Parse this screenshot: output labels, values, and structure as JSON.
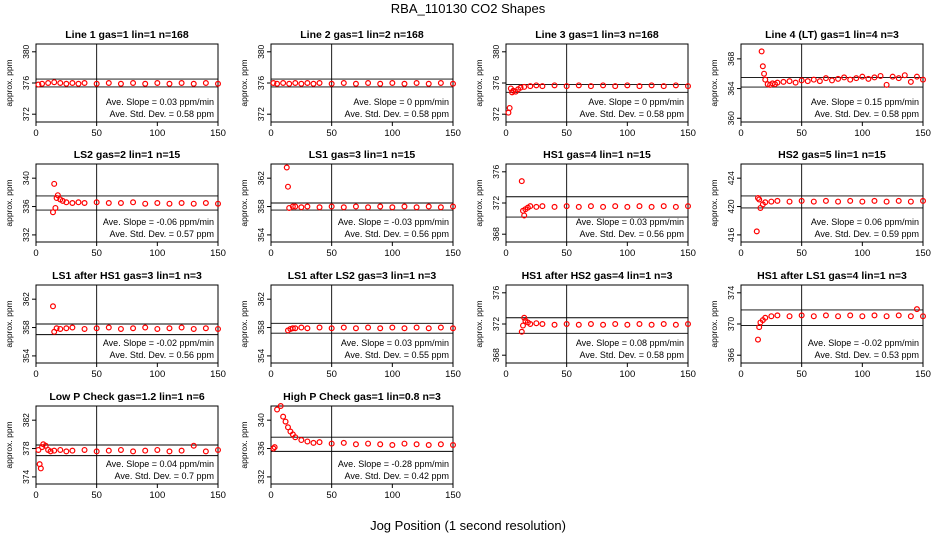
{
  "figure": {
    "title": "RBA_110130  CO2 Shapes",
    "xlabel": "Jog Position (1 second resolution)"
  },
  "colors": {
    "points": "#ff0000",
    "axes": "#000000",
    "background": "#ffffff"
  },
  "chart_data": [
    {
      "type": "scatter",
      "title": "Line 1 gas=1 lin=1 n=168",
      "ylabel": "approx. ppm",
      "xlim": [
        0,
        150
      ],
      "xticks": [
        0,
        50,
        100,
        150
      ],
      "ylim": [
        371,
        381
      ],
      "yticks": [
        372,
        376,
        380
      ],
      "ref_lines": [
        375.5,
        376.5
      ],
      "vline": 50,
      "slope": "Ave. Slope =  0.03  ppm/min",
      "stddev": "Ave. Std. Dev. =  0.58  ppm",
      "x": [
        2,
        5,
        10,
        15,
        20,
        25,
        30,
        35,
        40,
        50,
        60,
        70,
        80,
        90,
        100,
        110,
        120,
        130,
        140,
        150
      ],
      "y": [
        375.8,
        375.9,
        376.0,
        376.1,
        376.0,
        375.9,
        376.0,
        375.9,
        376.0,
        375.9,
        376.0,
        375.9,
        376.0,
        375.9,
        376.0,
        375.9,
        376.0,
        375.9,
        376.0,
        375.9
      ]
    },
    {
      "type": "scatter",
      "title": "Line 2 gas=1 lin=2 n=168",
      "ylabel": "approx. ppm",
      "xlim": [
        0,
        150
      ],
      "xticks": [
        0,
        50,
        100,
        150
      ],
      "ylim": [
        371,
        381
      ],
      "yticks": [
        372,
        376,
        380
      ],
      "ref_lines": [
        375.5,
        376.5
      ],
      "vline": 50,
      "slope": "Ave. Slope =  0  ppm/min",
      "stddev": "Ave. Std. Dev. =  0.58  ppm",
      "x": [
        2,
        5,
        10,
        15,
        20,
        25,
        30,
        35,
        40,
        50,
        60,
        70,
        80,
        90,
        100,
        110,
        120,
        130,
        140,
        150
      ],
      "y": [
        376.0,
        375.9,
        376.0,
        375.9,
        376.0,
        375.9,
        376.0,
        375.9,
        376.0,
        375.9,
        376.0,
        375.9,
        376.0,
        375.9,
        376.0,
        375.9,
        376.0,
        375.9,
        376.0,
        375.9
      ]
    },
    {
      "type": "scatter",
      "title": "Line 3 gas=1 lin=3 n=168",
      "ylabel": "approx. ppm",
      "xlim": [
        0,
        150
      ],
      "xticks": [
        0,
        50,
        100,
        150
      ],
      "ylim": [
        371,
        381
      ],
      "yticks": [
        372,
        376,
        380
      ],
      "ref_lines": [
        374.8,
        375.8
      ],
      "vline": 50,
      "slope": "Ave. Slope =  0  ppm/min",
      "stddev": "Ave. Std. Dev. =  0.58  ppm",
      "x": [
        2,
        3,
        4,
        5,
        6,
        8,
        10,
        12,
        15,
        20,
        25,
        30,
        40,
        50,
        60,
        70,
        80,
        90,
        100,
        110,
        120,
        130,
        140,
        150
      ],
      "y": [
        372.2,
        372.8,
        375.3,
        374.8,
        375.0,
        374.9,
        375.2,
        375.4,
        375.5,
        375.6,
        375.7,
        375.6,
        375.7,
        375.6,
        375.7,
        375.6,
        375.7,
        375.6,
        375.7,
        375.6,
        375.7,
        375.6,
        375.7,
        375.6
      ]
    },
    {
      "type": "scatter",
      "title": "Line 4 (LT) gas=1 lin=4 n=3",
      "ylabel": "approx. ppm",
      "xlim": [
        0,
        150
      ],
      "xticks": [
        0,
        50,
        100,
        150
      ],
      "ylim": [
        359.5,
        370
      ],
      "yticks": [
        360,
        364,
        368
      ],
      "ref_lines": [
        364.2,
        365.5
      ],
      "vline": 50,
      "slope": "Ave. Slope =  0.15  ppm/min",
      "stddev": "Ave. Std. Dev. =  0.58  ppm",
      "x": [
        17,
        18,
        19,
        20,
        22,
        24,
        26,
        28,
        30,
        35,
        40,
        45,
        50,
        55,
        60,
        65,
        70,
        75,
        80,
        85,
        90,
        95,
        100,
        105,
        110,
        115,
        120,
        125,
        130,
        135,
        140,
        145,
        150
      ],
      "y": [
        369.0,
        367.0,
        366.0,
        365.2,
        364.6,
        364.5,
        364.7,
        364.6,
        364.8,
        364.9,
        365.0,
        364.8,
        365.1,
        365.0,
        365.2,
        365.0,
        365.4,
        365.1,
        365.3,
        365.5,
        365.2,
        365.4,
        365.6,
        365.3,
        365.5,
        365.7,
        364.5,
        365.6,
        365.4,
        365.8,
        364.9,
        365.6,
        365.2
      ]
    },
    {
      "type": "scatter",
      "title": "LS2 gas=2 lin=1 n=15",
      "ylabel": "approx. ppm",
      "xlim": [
        0,
        150
      ],
      "xticks": [
        0,
        50,
        100,
        150
      ],
      "ylim": [
        331,
        342
      ],
      "yticks": [
        332,
        336,
        340
      ],
      "ref_lines": [
        335.5,
        337.5
      ],
      "vline": 50,
      "slope": "Ave. Slope =  -0.06  ppm/min",
      "stddev": "Ave. Std. Dev. =  0.57  ppm",
      "x": [
        14,
        15,
        16,
        17,
        18,
        20,
        22,
        25,
        30,
        35,
        40,
        50,
        60,
        70,
        80,
        90,
        100,
        110,
        120,
        130,
        140,
        150
      ],
      "y": [
        335.2,
        339.2,
        335.8,
        337.2,
        337.6,
        337.0,
        336.8,
        336.6,
        336.5,
        336.6,
        336.5,
        336.6,
        336.5,
        336.5,
        336.6,
        336.4,
        336.5,
        336.4,
        336.5,
        336.4,
        336.5,
        336.4
      ]
    },
    {
      "type": "scatter",
      "title": "LS1 gas=3 lin=1 n=15",
      "ylabel": "approx. ppm",
      "xlim": [
        0,
        150
      ],
      "xticks": [
        0,
        50,
        100,
        150
      ],
      "ylim": [
        353,
        364
      ],
      "yticks": [
        354,
        358,
        362
      ],
      "ref_lines": [
        357.5,
        358.5
      ],
      "vline": 50,
      "slope": "Ave. Slope =  -0.03  ppm/min",
      "stddev": "Ave. Std. Dev. =  0.56  ppm",
      "x": [
        13,
        14,
        15,
        18,
        20,
        25,
        30,
        40,
        50,
        60,
        70,
        80,
        90,
        100,
        110,
        120,
        130,
        140,
        150
      ],
      "y": [
        363.5,
        360.8,
        357.8,
        358.0,
        358.0,
        357.9,
        358.0,
        357.9,
        358.0,
        357.9,
        358.0,
        357.9,
        358.0,
        357.9,
        358.0,
        357.9,
        358.0,
        357.9,
        358.0
      ]
    },
    {
      "type": "scatter",
      "title": "HS1 gas=4 lin=1 n=15",
      "ylabel": "approx. ppm",
      "xlim": [
        0,
        150
      ],
      "xticks": [
        0,
        50,
        100,
        150
      ],
      "ylim": [
        367,
        377
      ],
      "yticks": [
        368,
        372,
        376
      ],
      "ref_lines": [
        370.2,
        372.8
      ],
      "vline": 50,
      "slope": "Ave. Slope =  0.03  ppm/min",
      "stddev": "Ave. Std. Dev. =  0.56  ppm",
      "x": [
        13,
        14,
        15,
        16,
        18,
        20,
        25,
        30,
        40,
        50,
        60,
        70,
        80,
        90,
        100,
        110,
        120,
        130,
        140,
        150
      ],
      "y": [
        374.8,
        371.0,
        370.4,
        371.2,
        371.4,
        371.6,
        371.5,
        371.6,
        371.5,
        371.6,
        371.5,
        371.6,
        371.5,
        371.6,
        371.5,
        371.6,
        371.5,
        371.6,
        371.5,
        371.6
      ]
    },
    {
      "type": "scatter",
      "title": "HS2 gas=5 lin=1 n=15",
      "ylabel": "approx. ppm",
      "xlim": [
        0,
        150
      ],
      "xticks": [
        0,
        50,
        100,
        150
      ],
      "ylim": [
        415,
        426
      ],
      "yticks": [
        416,
        420,
        424
      ],
      "ref_lines": [
        419.8,
        421.5
      ],
      "vline": 50,
      "slope": "Ave. Slope =  0.06  ppm/min",
      "stddev": "Ave. Std. Dev. =  0.59  ppm",
      "x": [
        13,
        14,
        15,
        16,
        18,
        20,
        25,
        30,
        40,
        50,
        60,
        70,
        80,
        90,
        100,
        110,
        120,
        130,
        140,
        150
      ],
      "y": [
        416.5,
        421.2,
        421.0,
        419.8,
        420.3,
        420.6,
        420.7,
        420.8,
        420.7,
        420.8,
        420.7,
        420.8,
        420.7,
        420.8,
        420.7,
        420.8,
        420.7,
        420.8,
        420.7,
        420.8
      ]
    },
    {
      "type": "scatter",
      "title": "LS1 after HS1 gas=3 lin=1 n=3",
      "ylabel": "approx. ppm",
      "xlim": [
        0,
        150
      ],
      "xticks": [
        0,
        50,
        100,
        150
      ],
      "ylim": [
        353,
        364
      ],
      "yticks": [
        354,
        358,
        362
      ],
      "ref_lines": [
        357.0,
        358.5
      ],
      "vline": 50,
      "slope": "Ave. Slope =  -0.02  ppm/min",
      "stddev": "Ave. Std. Dev. =  0.56  ppm",
      "x": [
        14,
        15,
        17,
        20,
        25,
        30,
        40,
        50,
        60,
        70,
        80,
        90,
        100,
        110,
        120,
        130,
        140,
        150
      ],
      "y": [
        361.0,
        357.4,
        357.9,
        357.8,
        357.9,
        358.0,
        357.8,
        357.9,
        358.0,
        357.8,
        357.9,
        358.0,
        357.8,
        357.9,
        358.0,
        357.8,
        357.9,
        357.8
      ]
    },
    {
      "type": "scatter",
      "title": "LS1 after LS2 gas=3 lin=1 n=3",
      "ylabel": "approx. ppm",
      "xlim": [
        0,
        150
      ],
      "xticks": [
        0,
        50,
        100,
        150
      ],
      "ylim": [
        353,
        364
      ],
      "yticks": [
        354,
        358,
        362
      ],
      "ref_lines": [
        357.2,
        358.6
      ],
      "vline": 50,
      "slope": "Ave. Slope =  0.03  ppm/min",
      "stddev": "Ave. Std. Dev. =  0.55  ppm",
      "x": [
        14,
        16,
        18,
        20,
        25,
        30,
        40,
        50,
        60,
        70,
        80,
        90,
        100,
        110,
        120,
        130,
        140,
        150
      ],
      "y": [
        357.6,
        357.8,
        357.9,
        357.9,
        358.0,
        357.9,
        358.0,
        357.9,
        358.0,
        357.9,
        358.0,
        357.9,
        358.0,
        357.9,
        358.0,
        357.9,
        358.0,
        357.9
      ]
    },
    {
      "type": "scatter",
      "title": "HS1 after HS2 gas=4 lin=1 n=3",
      "ylabel": "approx. ppm",
      "xlim": [
        0,
        150
      ],
      "xticks": [
        0,
        50,
        100,
        150
      ],
      "ylim": [
        367,
        377
      ],
      "yticks": [
        368,
        372,
        376
      ],
      "ref_lines": [
        370.8,
        372.8
      ],
      "vline": 50,
      "slope": "Ave. Slope =  0.08  ppm/min",
      "stddev": "Ave. Std. Dev. =  0.58  ppm",
      "x": [
        13,
        14,
        15,
        16,
        18,
        20,
        25,
        30,
        40,
        50,
        60,
        70,
        80,
        90,
        100,
        110,
        120,
        130,
        140,
        150
      ],
      "y": [
        371.0,
        371.8,
        372.8,
        372.4,
        372.2,
        372.0,
        372.1,
        372.0,
        371.9,
        372.0,
        371.9,
        372.0,
        371.9,
        372.0,
        371.9,
        372.0,
        371.9,
        372.0,
        371.9,
        372.0
      ]
    },
    {
      "type": "scatter",
      "title": "HS1 after LS1 gas=4 lin=1 n=3",
      "ylabel": "approx. ppm",
      "xlim": [
        0,
        150
      ],
      "xticks": [
        0,
        50,
        100,
        150
      ],
      "ylim": [
        365,
        375
      ],
      "yticks": [
        366,
        370,
        374
      ],
      "ref_lines": [
        369.8,
        371.8
      ],
      "vline": 50,
      "slope": "Ave. Slope =  -0.02  ppm/min",
      "stddev": "Ave. Std. Dev. =  0.53  ppm",
      "x": [
        14,
        15,
        16,
        18,
        20,
        25,
        30,
        40,
        50,
        60,
        70,
        80,
        90,
        100,
        110,
        120,
        130,
        140,
        145,
        150
      ],
      "y": [
        368.0,
        369.6,
        370.2,
        370.5,
        370.8,
        371.0,
        371.1,
        371.0,
        371.1,
        371.0,
        371.1,
        371.0,
        371.1,
        371.0,
        371.1,
        371.0,
        371.1,
        371.0,
        371.9,
        371.0
      ]
    },
    {
      "type": "scatter",
      "title": "Low P Check gas=1.2 lin=1 n=6",
      "ylabel": "approx. ppm",
      "xlim": [
        0,
        150
      ],
      "xticks": [
        0,
        50,
        100,
        150
      ],
      "ylim": [
        373,
        384
      ],
      "yticks": [
        374,
        378,
        382
      ],
      "ref_lines": [
        377.0,
        378.5
      ],
      "vline": 50,
      "slope": "Ave. Slope =  0.04  ppm/min",
      "stddev": "Ave. Std. Dev. =  0.7  ppm",
      "x": [
        2,
        3,
        4,
        5,
        6,
        8,
        10,
        12,
        15,
        20,
        25,
        30,
        40,
        50,
        60,
        70,
        80,
        90,
        100,
        110,
        120,
        130,
        140,
        150
      ],
      "y": [
        377.8,
        375.8,
        375.2,
        378.2,
        378.6,
        378.4,
        377.8,
        377.6,
        377.7,
        377.8,
        377.6,
        377.7,
        377.8,
        377.6,
        377.7,
        377.8,
        377.6,
        377.7,
        377.8,
        377.6,
        377.7,
        378.4,
        377.6,
        377.8
      ]
    },
    {
      "type": "scatter",
      "title": "High P Check gas=1 lin=0.8 n=3",
      "ylabel": "approx. ppm",
      "xlim": [
        0,
        150
      ],
      "xticks": [
        0,
        50,
        100,
        150
      ],
      "ylim": [
        331,
        342
      ],
      "yticks": [
        332,
        336,
        340
      ],
      "ref_lines": [
        335.6,
        337.6
      ],
      "vline": 50,
      "slope": "Ave. Slope =  -0.28  ppm/min",
      "stddev": "Ave. Std. Dev. =  0.42  ppm",
      "x": [
        2,
        3,
        5,
        8,
        10,
        12,
        14,
        16,
        18,
        20,
        25,
        30,
        35,
        40,
        50,
        60,
        70,
        80,
        90,
        100,
        110,
        120,
        130,
        140,
        150
      ],
      "y": [
        336.0,
        336.2,
        341.5,
        342.0,
        340.5,
        339.8,
        339.0,
        338.4,
        338.0,
        337.6,
        337.2,
        337.0,
        336.8,
        336.9,
        336.7,
        336.8,
        336.6,
        336.7,
        336.6,
        336.5,
        336.7,
        336.6,
        336.5,
        336.6,
        336.5
      ]
    }
  ]
}
